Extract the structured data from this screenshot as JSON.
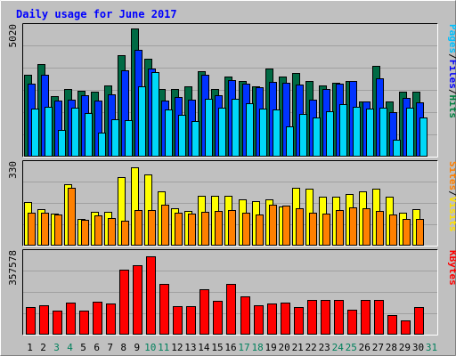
{
  "chart_data": {
    "type": "bar",
    "title": "Daily usage for June 2017",
    "categories": [
      "1",
      "2",
      "3",
      "4",
      "5",
      "6",
      "7",
      "8",
      "9",
      "10",
      "11",
      "12",
      "13",
      "14",
      "15",
      "16",
      "17",
      "18",
      "19",
      "20",
      "21",
      "22",
      "23",
      "24",
      "25",
      "26",
      "27",
      "28",
      "29",
      "30",
      "31"
    ],
    "weekend_categories": [
      "3",
      "4",
      "10",
      "11",
      "17",
      "18",
      "24",
      "25",
      "31"
    ],
    "panels": [
      {
        "id": "top",
        "ymax_label": "5020",
        "ylim": [
          0,
          5020
        ],
        "legend": [
          {
            "text": "Pages",
            "color": "#00c0ff"
          },
          {
            "text": "/",
            "color": "#000000"
          },
          {
            "text": "Files",
            "color": "#0000ff"
          },
          {
            "text": "/",
            "color": "#000000"
          },
          {
            "text": "Hits",
            "color": "#008040"
          }
        ],
        "series": [
          {
            "name": "Hits",
            "color": "#006a44",
            "values": [
              3220,
              3610,
              2360,
              2640,
              2590,
              2540,
              2800,
              3970,
              5020,
              3830,
              2640,
              2650,
              2740,
              3330,
              2660,
              3140,
              2980,
              2760,
              3450,
              3140,
              3280,
              2980,
              2780,
              2890,
              2980,
              2150,
              3550,
              2160,
              2540,
              2560,
              null
            ]
          },
          {
            "name": "Files",
            "color": "#0033ff",
            "values": [
              2850,
              3220,
              2200,
              2220,
              2400,
              2200,
              2440,
              3380,
              4190,
              3450,
              2180,
              2340,
              2230,
              3190,
              2400,
              2990,
              2850,
              2720,
              2930,
              2910,
              2810,
              2220,
              2660,
              2860,
              2960,
              2150,
              3070,
              1750,
              2300,
              2130,
              null
            ]
          },
          {
            "name": "Pages",
            "color": "#00d8f8",
            "values": [
              1890,
              1950,
              1030,
              1930,
              1700,
              940,
              1450,
              1420,
              2740,
              3310,
              1840,
              1640,
              1390,
              2260,
              1900,
              2270,
              2100,
              1870,
              1860,
              1200,
              1660,
              1530,
              1770,
              2060,
              1940,
              1890,
              1930,
              660,
              1920,
              1530,
              null
            ]
          }
        ]
      },
      {
        "id": "middle",
        "ymax_label": "330",
        "ylim": [
          0,
          330
        ],
        "legend": [
          {
            "text": "Sites",
            "color": "#ff8000"
          },
          {
            "text": "/",
            "color": "#000000"
          },
          {
            "text": "Visits",
            "color": "#ffe000"
          }
        ],
        "series": [
          {
            "name": "Visits",
            "color": "#ffff00",
            "values": [
              178,
              151,
              133,
              253,
              110,
              140,
              141,
              281,
              322,
              295,
              222,
              155,
              143,
              205,
              207,
              207,
              190,
              185,
              192,
              163,
              237,
              234,
              200,
              202,
              213,
              225,
              236,
              200,
              137,
              151,
              null
            ]
          },
          {
            "name": "Sites",
            "color": "#ff8000",
            "values": [
              134,
              135,
              128,
              240,
              108,
              126,
              113,
              103,
              147,
              145,
              170,
              134,
              133,
              140,
              144,
              148,
              137,
              130,
              169,
              164,
              155,
              137,
              132,
              145,
              158,
              154,
              142,
              129,
              109,
              111,
              null
            ]
          }
        ]
      },
      {
        "id": "bottom",
        "ymax_label": "357578",
        "ylim": [
          0,
          357578
        ],
        "legend": [
          {
            "text": "KBytes",
            "color": "#ff0000"
          }
        ],
        "series": [
          {
            "name": "KBytes",
            "color": "#ff0000",
            "values": [
              124000,
              131000,
              106000,
              143000,
              106000,
              146000,
              138000,
              292000,
              310000,
              350000,
              225000,
              126000,
              126000,
              204000,
              152000,
              228000,
              172000,
              132000,
              138000,
              142000,
              122000,
              154000,
              156000,
              155000,
              113000,
              156000,
              156000,
              88000,
              63000,
              122000,
              null
            ]
          }
        ]
      }
    ]
  }
}
